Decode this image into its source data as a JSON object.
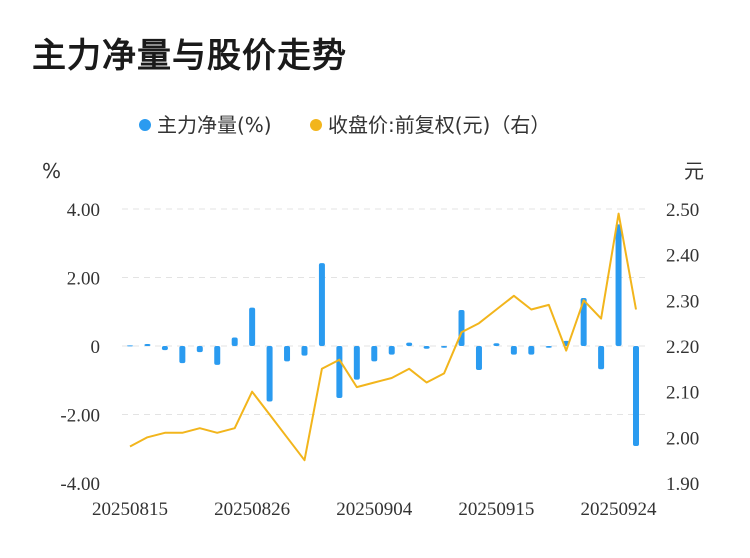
{
  "title": "主力净量与股价走势",
  "chart_data": {
    "type": "bar+line",
    "title": "主力净量与股价走势",
    "legend": [
      {
        "label": "主力净量(%)",
        "color": "#2a9bf0"
      },
      {
        "label": "收盘价:前复权(元)（右）",
        "color": "#f2b51c"
      }
    ],
    "left_axis": {
      "unit": "%",
      "range": [
        -4,
        4
      ],
      "ticks": [
        "4.00",
        "2.00",
        "0",
        "-2.00",
        "-4.00"
      ],
      "tick_values": [
        4,
        2,
        0,
        -2,
        -4
      ]
    },
    "right_axis": {
      "unit": "元",
      "range": [
        1.9,
        2.5
      ],
      "ticks": [
        "2.50",
        "2.40",
        "2.30",
        "2.20",
        "2.10",
        "2.00",
        "1.90"
      ],
      "tick_values": [
        2.5,
        2.4,
        2.3,
        2.2,
        2.1,
        2.0,
        1.9
      ]
    },
    "x_ticks": [
      "20250815",
      "20250826",
      "20250904",
      "20250915",
      "20250924"
    ],
    "x_tick_indices": [
      0,
      7,
      14,
      21,
      28
    ],
    "grid": true,
    "legend_position": "top-center",
    "series": [
      {
        "name": "主力净量(%)",
        "type": "bar",
        "color": "#2a9bf0",
        "values": [
          0.02,
          0.06,
          -0.12,
          -0.5,
          -0.18,
          -0.55,
          0.25,
          1.12,
          -1.62,
          -0.45,
          -0.28,
          2.42,
          -1.52,
          -0.98,
          -0.45,
          -0.25,
          0.1,
          -0.08,
          -0.05,
          1.05,
          -0.7,
          0.08,
          -0.25,
          -0.25,
          -0.05,
          0.15,
          1.4,
          -0.68,
          3.55,
          -2.92
        ]
      },
      {
        "name": "收盘价:前复权(元)（右）",
        "type": "line",
        "axis": "right",
        "color": "#f2b51c",
        "values": [
          1.98,
          2.0,
          2.01,
          2.01,
          2.02,
          2.01,
          2.02,
          2.1,
          2.05,
          2.0,
          1.95,
          2.15,
          2.17,
          2.11,
          2.12,
          2.13,
          2.15,
          2.12,
          2.14,
          2.23,
          2.25,
          2.28,
          2.31,
          2.28,
          2.29,
          2.19,
          2.3,
          2.26,
          2.49,
          2.28
        ]
      }
    ]
  }
}
